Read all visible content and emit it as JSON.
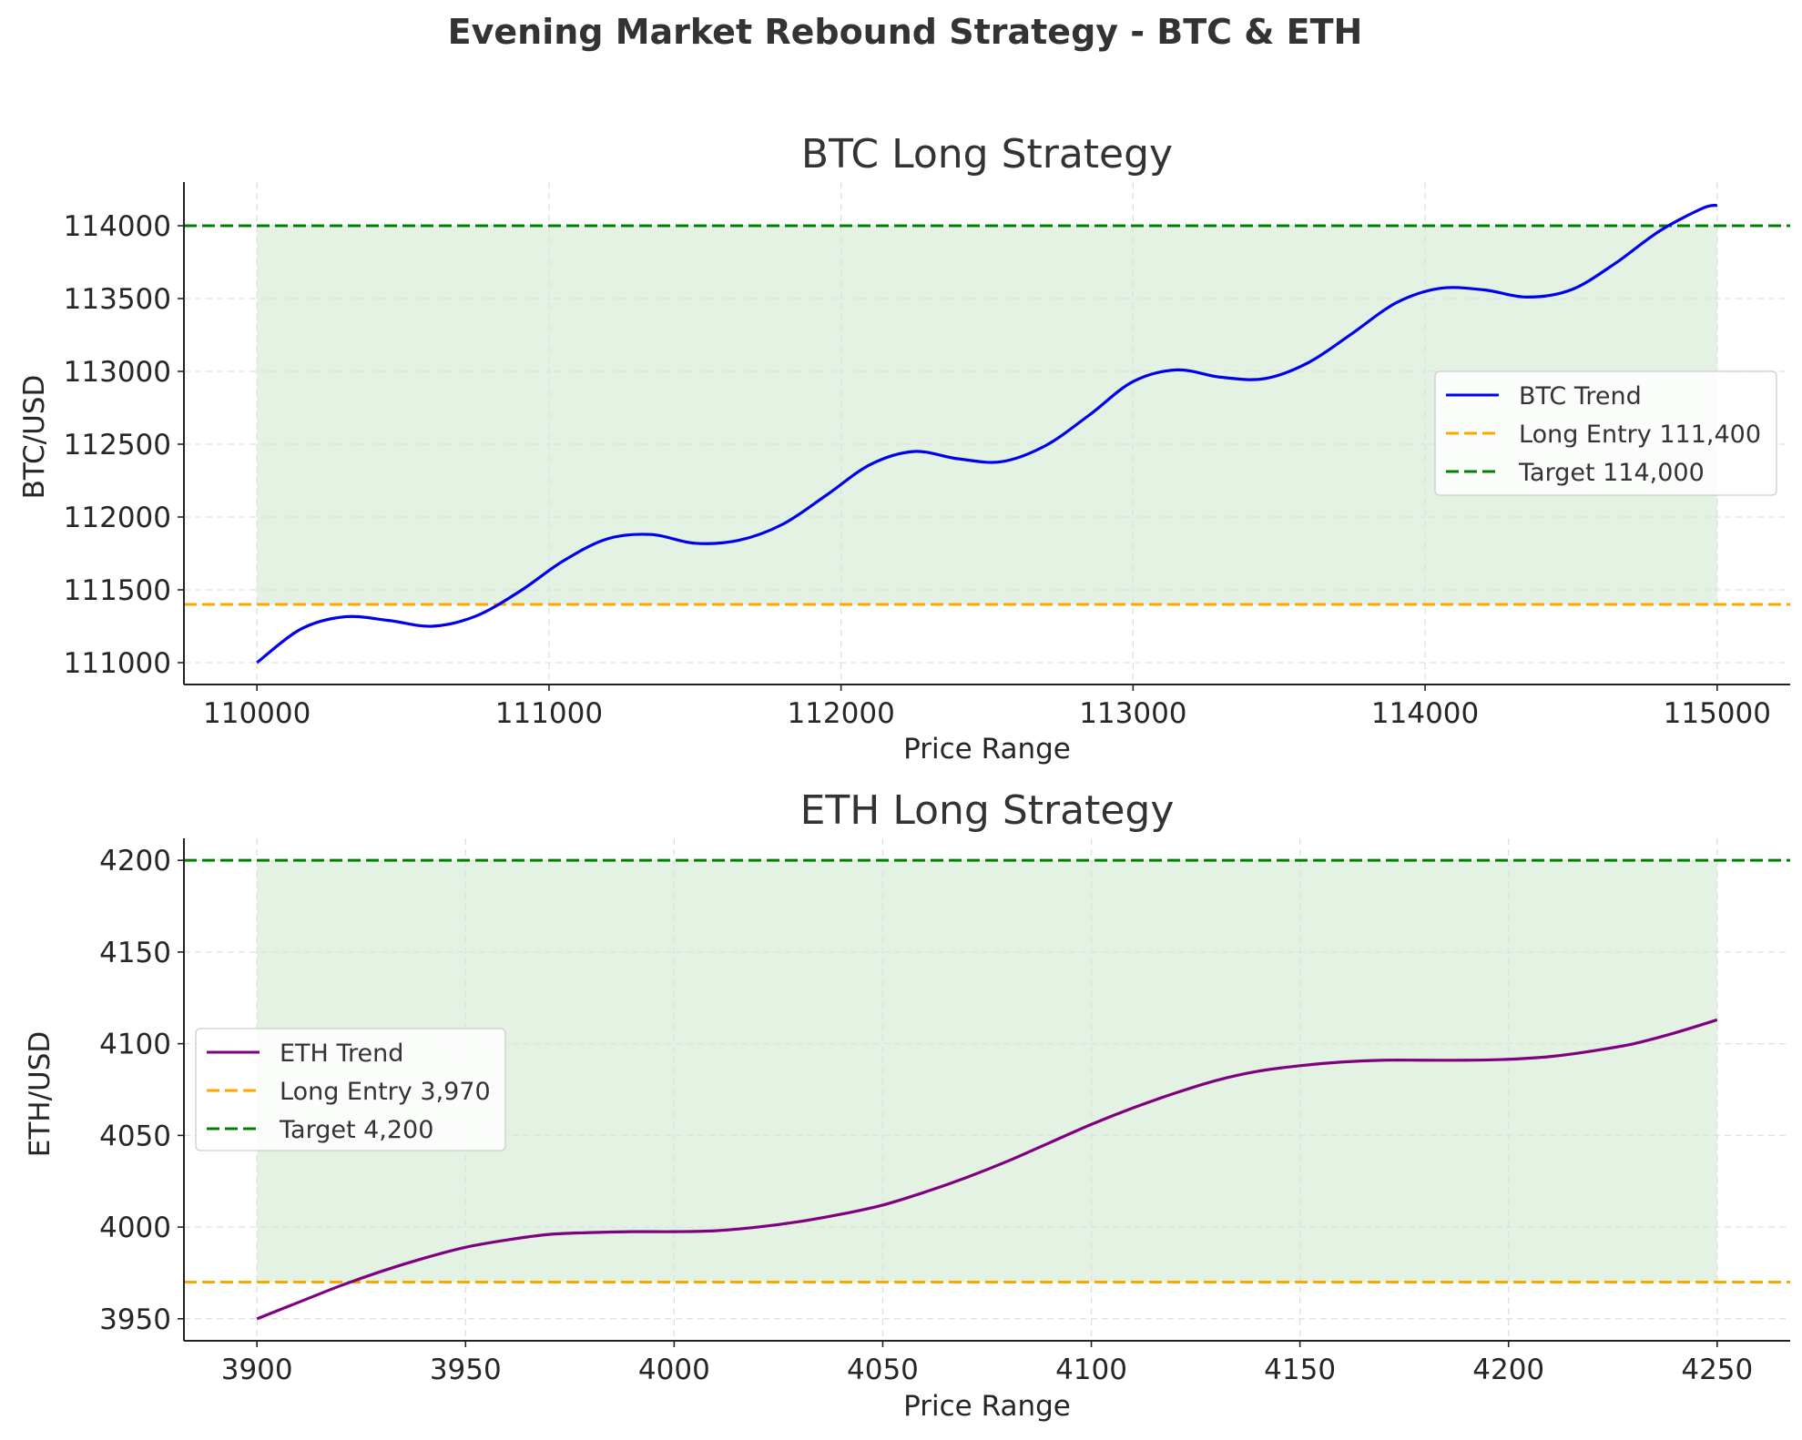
{
  "title": "Evening Market Rebound Strategy - BTC & ETH",
  "colors": {
    "btc_trend": "#0000ee",
    "eth_trend": "#800080",
    "entry": "#ffa500",
    "target": "#008000",
    "zone": "#e3f2e3"
  },
  "chart_data": [
    {
      "type": "line",
      "title": "BTC Long Strategy",
      "xlabel": "Price Range",
      "ylabel": "BTC/USD",
      "xlim": [
        109750,
        115250
      ],
      "ylim": [
        110850,
        114300
      ],
      "xticks": [
        110000,
        111000,
        112000,
        113000,
        114000,
        115000
      ],
      "yticks": [
        111000,
        111500,
        112000,
        112500,
        113000,
        113500,
        114000
      ],
      "grid": true,
      "legend_position": "right",
      "shaded_zone": {
        "x": [
          110000,
          115000
        ],
        "y": [
          111400,
          114000
        ]
      },
      "series": [
        {
          "name": "BTC Trend",
          "style": "solid",
          "x": [
            110000,
            110150,
            110300,
            110450,
            110600,
            110750,
            110900,
            111050,
            111200,
            111350,
            111500,
            111650,
            111800,
            111950,
            112100,
            112250,
            112400,
            112550,
            112700,
            112850,
            113000,
            113150,
            113300,
            113450,
            113600,
            113750,
            113900,
            114050,
            114200,
            114350,
            114500,
            114650,
            114800,
            114950,
            115000
          ],
          "y": [
            111000,
            111230,
            111315,
            111290,
            111250,
            111320,
            111490,
            111700,
            111850,
            111880,
            111820,
            111840,
            111950,
            112150,
            112360,
            112450,
            112400,
            112380,
            112490,
            112700,
            112930,
            113010,
            112960,
            112950,
            113060,
            113260,
            113470,
            113570,
            113560,
            113510,
            113560,
            113740,
            113960,
            114120,
            114140
          ]
        },
        {
          "name": "Long Entry 111,400",
          "style": "dashed",
          "value": 111400
        },
        {
          "name": "Target 114,000",
          "style": "dashed",
          "value": 114000
        }
      ]
    },
    {
      "type": "line",
      "title": "ETH Long Strategy",
      "xlabel": "Price Range",
      "ylabel": "ETH/USD",
      "xlim": [
        3882.5,
        4267.5
      ],
      "ylim": [
        3938,
        4212
      ],
      "xticks": [
        3900,
        3950,
        4000,
        4050,
        4100,
        4150,
        4200,
        4250
      ],
      "yticks": [
        3950,
        4000,
        4050,
        4100,
        4150,
        4200
      ],
      "grid": true,
      "legend_position": "center-left",
      "shaded_zone": {
        "x": [
          3900,
          4250
        ],
        "y": [
          3970,
          4200
        ]
      },
      "series": [
        {
          "name": "ETH Trend",
          "style": "solid",
          "x": [
            3900,
            3910,
            3920,
            3930,
            3940,
            3950,
            3960,
            3970,
            3980,
            3990,
            4000,
            4010,
            4020,
            4030,
            4040,
            4050,
            4060,
            4070,
            4080,
            4090,
            4100,
            4110,
            4120,
            4130,
            4140,
            4150,
            4160,
            4170,
            4180,
            4190,
            4200,
            4210,
            4220,
            4230,
            4240,
            4250
          ],
          "y": [
            3950,
            3959,
            3968,
            3976,
            3983,
            3989,
            3993,
            3996,
            3997,
            3997.5,
            3997.5,
            3998,
            4000,
            4003,
            4007,
            4012,
            4019,
            4027,
            4036,
            4046,
            4056,
            4065,
            4073,
            4080,
            4085,
            4088,
            4090,
            4091,
            4091,
            4091,
            4091.5,
            4093,
            4096,
            4100,
            4106,
            4113
          ]
        },
        {
          "name": "Long Entry 3,970",
          "style": "dashed",
          "value": 3970
        },
        {
          "name": "Target 4,200",
          "style": "dashed",
          "value": 4200
        }
      ]
    }
  ]
}
